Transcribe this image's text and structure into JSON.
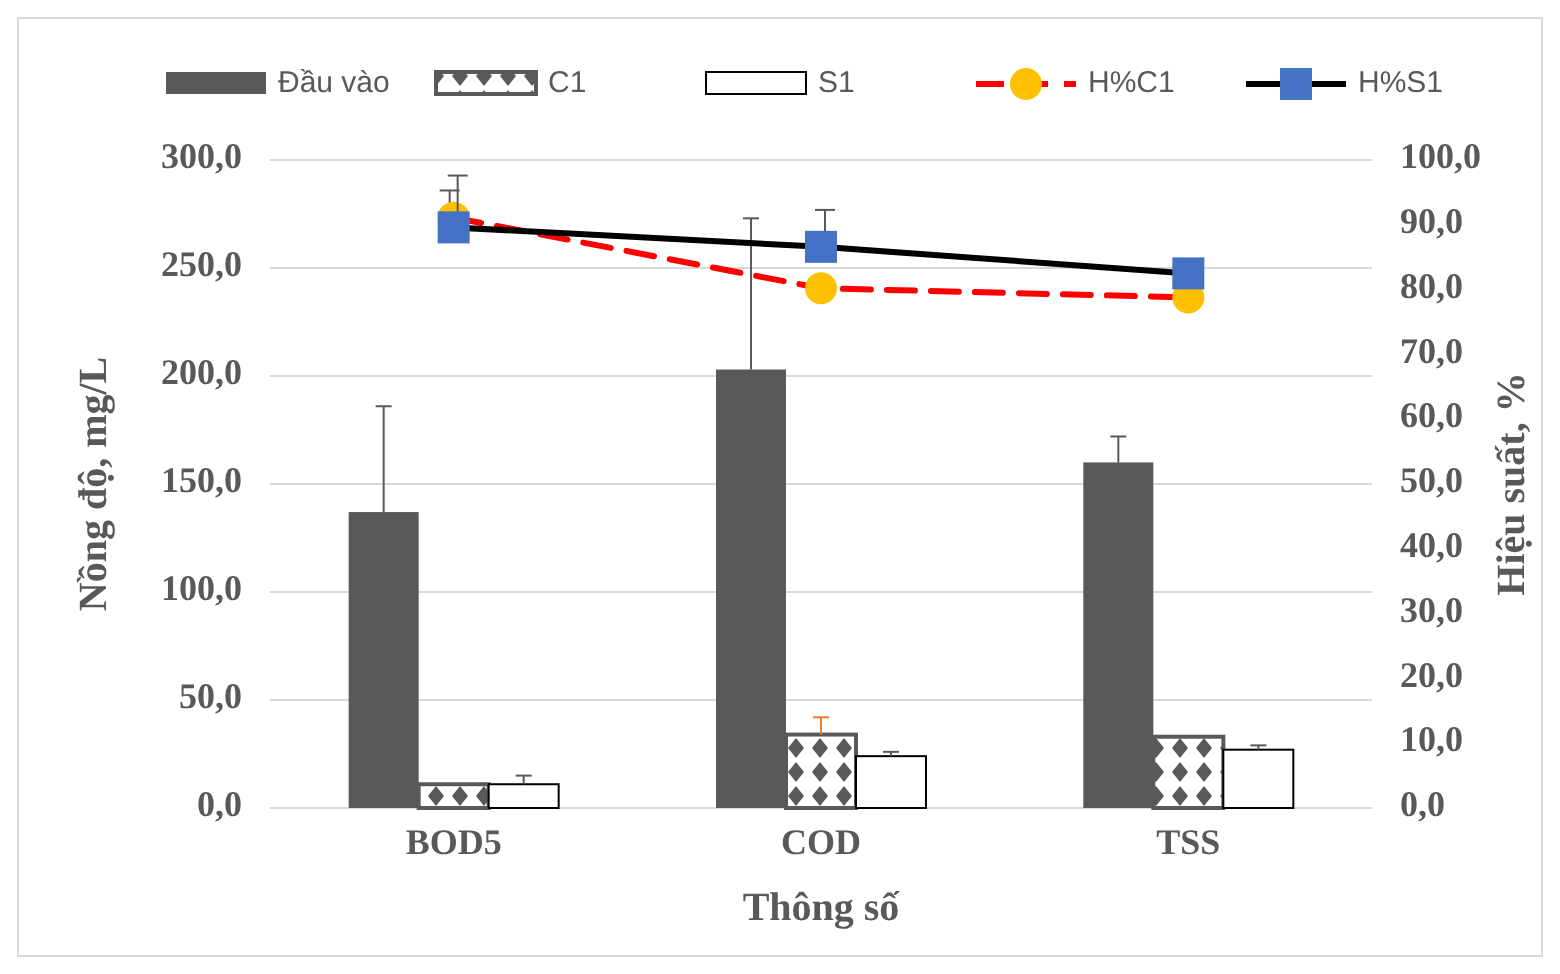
{
  "chart_data": {
    "type": "bar",
    "xlabel": "Thông số",
    "ylabel": "Nồng độ, mg/L",
    "y2label": "Hiệu suất, %",
    "categories": [
      "BOD5",
      "COD",
      "TSS"
    ],
    "series": [
      {
        "name": "Đầu vào",
        "color": "#595959",
        "values": [
          137,
          203,
          160
        ],
        "errors": [
          49,
          70,
          12
        ]
      },
      {
        "name": "C1",
        "color": "#595959",
        "values": [
          11,
          34,
          33
        ],
        "errors": [
          null,
          8,
          null
        ]
      },
      {
        "name": "S1",
        "color": "#ffffff",
        "values": [
          11,
          24,
          27
        ],
        "errors": [
          4,
          2,
          2
        ]
      },
      {
        "name": "H%C1",
        "type": "line",
        "axis": "y2",
        "color": "#ff0000",
        "colors": [
          "#ffc000",
          "#ffc000",
          "#ffc000"
        ],
        "marker": "circle",
        "line_style": "dashed",
        "values": [
          91.1,
          80.2,
          78.8
        ],
        "errors": [
          4.2,
          null,
          null
        ]
      },
      {
        "name": "H%S1",
        "type": "line",
        "axis": "y2",
        "color": "#000000",
        "colors": [
          "#4472c4",
          "#4472c4",
          "#4472c4"
        ],
        "marker": "square",
        "line_style": "solid",
        "values": [
          89.6,
          86.6,
          82.5
        ],
        "errors": [
          8,
          5.7,
          null
        ]
      }
    ],
    "ylim": [
      0,
      300
    ],
    "yticks": [
      {
        "value": 0,
        "label": "0,0"
      },
      {
        "value": 50,
        "label": "50,0"
      },
      {
        "value": 100,
        "label": "100,0"
      },
      {
        "value": 150,
        "label": "150,0"
      },
      {
        "value": 200,
        "label": "200,0"
      },
      {
        "value": 250,
        "label": "250,0"
      },
      {
        "value": 300,
        "label": "300,0"
      }
    ],
    "y2lim": [
      0,
      100
    ],
    "y2ticks": [
      {
        "value": 0,
        "label": "0,0"
      },
      {
        "value": 10,
        "label": "10,0"
      },
      {
        "value": 20,
        "label": "20,0"
      },
      {
        "value": 30,
        "label": "30,0"
      },
      {
        "value": 40,
        "label": "40,0"
      },
      {
        "value": 50,
        "label": "50,0"
      },
      {
        "value": 60,
        "label": "60,0"
      },
      {
        "value": 70,
        "label": "70,0"
      },
      {
        "value": 80,
        "label": "80,0"
      },
      {
        "value": 90,
        "label": "90,0"
      },
      {
        "value": 100,
        "label": "100,0"
      }
    ],
    "grid": "y",
    "legend": "top"
  }
}
